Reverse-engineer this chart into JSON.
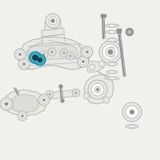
{
  "background_color": "#f0f0ec",
  "fig_width": 2.0,
  "fig_height": 2.0,
  "dpi": 100,
  "lc": "#b0b0b0",
  "dlc": "#909090",
  "pf": "#e8e8e4",
  "pe": "#aaaaaa",
  "hc1": "#3bbfcc",
  "hc2": "#5dccd8",
  "hc_dark": "#1a8899",
  "hc_hole": "#0d4455"
}
